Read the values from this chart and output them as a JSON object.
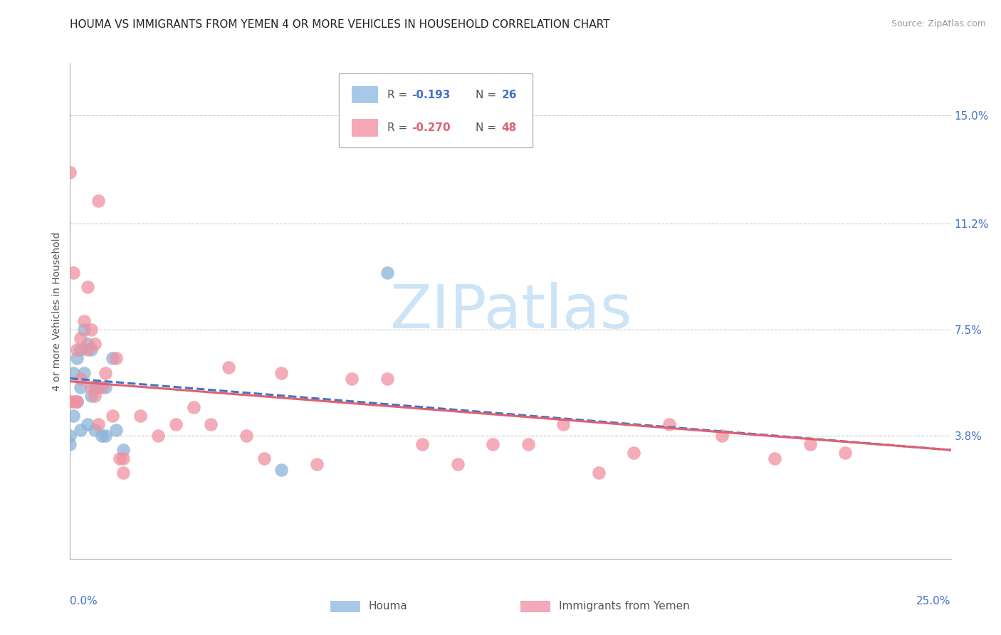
{
  "title": "HOUMA VS IMMIGRANTS FROM YEMEN 4 OR MORE VEHICLES IN HOUSEHOLD CORRELATION CHART",
  "source": "Source: ZipAtlas.com",
  "ylabel": "4 or more Vehicles in Household",
  "ytick_labels": [
    "15.0%",
    "11.2%",
    "7.5%",
    "3.8%"
  ],
  "ytick_values": [
    0.15,
    0.112,
    0.075,
    0.038
  ],
  "xtick_labels": [
    "0.0%",
    "25.0%"
  ],
  "xtick_values": [
    0.0,
    0.25
  ],
  "xlim": [
    0.0,
    0.25
  ],
  "ylim": [
    -0.005,
    0.168
  ],
  "houma_scatter": {
    "color": "#8ab4d8",
    "x": [
      0.0,
      0.0,
      0.001,
      0.001,
      0.002,
      0.002,
      0.003,
      0.003,
      0.003,
      0.004,
      0.004,
      0.005,
      0.005,
      0.006,
      0.006,
      0.007,
      0.007,
      0.008,
      0.009,
      0.01,
      0.01,
      0.012,
      0.013,
      0.015,
      0.06,
      0.09
    ],
    "y": [
      0.038,
      0.035,
      0.06,
      0.045,
      0.065,
      0.05,
      0.068,
      0.055,
      0.04,
      0.075,
      0.06,
      0.07,
      0.042,
      0.068,
      0.052,
      0.055,
      0.04,
      0.055,
      0.038,
      0.055,
      0.038,
      0.065,
      0.04,
      0.033,
      0.026,
      0.095
    ]
  },
  "yemen_scatter": {
    "color": "#f090a0",
    "x": [
      0.0,
      0.001,
      0.001,
      0.002,
      0.002,
      0.003,
      0.003,
      0.004,
      0.005,
      0.005,
      0.006,
      0.006,
      0.007,
      0.007,
      0.008,
      0.008,
      0.009,
      0.01,
      0.012,
      0.013,
      0.014,
      0.015,
      0.015,
      0.02,
      0.025,
      0.03,
      0.035,
      0.04,
      0.045,
      0.05,
      0.055,
      0.06,
      0.07,
      0.08,
      0.09,
      0.1,
      0.11,
      0.12,
      0.13,
      0.14,
      0.15,
      0.16,
      0.17,
      0.185,
      0.2,
      0.21,
      0.22,
      0.0
    ],
    "y": [
      0.13,
      0.095,
      0.05,
      0.068,
      0.05,
      0.072,
      0.058,
      0.078,
      0.09,
      0.068,
      0.075,
      0.055,
      0.07,
      0.052,
      0.12,
      0.042,
      0.055,
      0.06,
      0.045,
      0.065,
      0.03,
      0.03,
      0.025,
      0.045,
      0.038,
      0.042,
      0.048,
      0.042,
      0.062,
      0.038,
      0.03,
      0.06,
      0.028,
      0.058,
      0.058,
      0.035,
      0.028,
      0.035,
      0.035,
      0.042,
      0.025,
      0.032,
      0.042,
      0.038,
      0.03,
      0.035,
      0.032,
      0.05
    ]
  },
  "houma_line": {
    "color": "#4472c4",
    "x0": 0.0,
    "y0": 0.058,
    "x1": 0.25,
    "y1": 0.033,
    "linestyle": "--"
  },
  "yemen_line": {
    "color": "#e06070",
    "x0": 0.0,
    "y0": 0.057,
    "x1": 0.25,
    "y1": 0.033,
    "linestyle": "-"
  },
  "background_color": "#ffffff",
  "grid_color": "#cccccc",
  "watermark_text": "ZIPatlas",
  "watermark_color": "#cce4f5",
  "title_fontsize": 11,
  "ylabel_fontsize": 10,
  "tick_fontsize": 11,
  "source_fontsize": 9,
  "legend_r1_color": "#4472c4",
  "legend_r2_color": "#e06070",
  "legend_patch1_color": "#a8c8e8",
  "legend_patch2_color": "#f4a8b8",
  "legend_r1_text": "R =  -0.193",
  "legend_n1_text": "N = 26",
  "legend_r2_text": "R =  -0.270",
  "legend_n2_text": "N = 48",
  "bottom_label1": "Houma",
  "bottom_label2": "Immigrants from Yemen"
}
